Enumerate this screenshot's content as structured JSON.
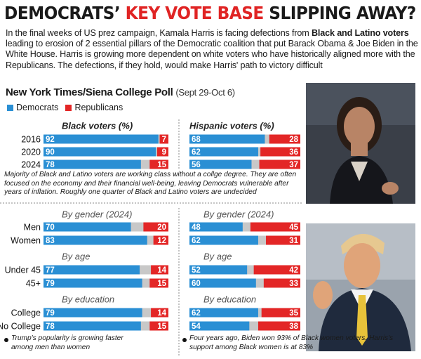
{
  "header": {
    "title_parts": [
      "DEMOCRATS’ ",
      "KEY VOTE BASE",
      " SLIPPING AWAY?"
    ]
  },
  "intro": [
    "In the final weeks of US prez campaign, Kamala Harris is facing defections from ",
    "Black and Latino voters",
    " leading to erosion of 2 essential pillars of the Democratic coalition that put Barack Obama & Joe Biden in the White House. Harris is growing more dependent on white voters who have historically aligned more with the Republicans. The defections, if they hold, would make Harris' path to victory difficult"
  ],
  "poll": {
    "title": "New York Times/Siena College Poll",
    "dates": "(Sept 29-Oct 6)",
    "legend": [
      {
        "name": "Democrats",
        "color": "#2a8fd4"
      },
      {
        "name": "Republicans",
        "color": "#e32626"
      }
    ]
  },
  "chart_data": [
    {
      "type": "bar",
      "stacked": true,
      "title": "Black voters (%)",
      "categories": [
        "2016",
        "2020",
        "2024"
      ],
      "series": [
        {
          "values": [
            92,
            90,
            78
          ]
        },
        {
          "values": [
            7,
            9,
            15
          ]
        }
      ],
      "xlim": [
        0,
        100
      ]
    },
    {
      "type": "bar",
      "stacked": true,
      "title": "Hispanic voters (%)",
      "series": [
        {
          "values": [
            68,
            62,
            56
          ]
        },
        {
          "values": [
            28,
            36,
            37
          ]
        }
      ],
      "xlim": [
        0,
        100
      ]
    },
    {
      "type": "bar",
      "stacked": true,
      "title": "By gender (2024)",
      "categories": [
        "Men",
        "Women"
      ],
      "series": [
        {
          "values": [
            70,
            83
          ]
        },
        {
          "values": [
            20,
            12
          ]
        }
      ],
      "xlim": [
        0,
        100
      ]
    },
    {
      "type": "bar",
      "stacked": true,
      "title": "By gender (2024)",
      "series": [
        {
          "values": [
            48,
            62
          ]
        },
        {
          "values": [
            45,
            31
          ]
        }
      ],
      "xlim": [
        0,
        100
      ]
    },
    {
      "type": "bar",
      "stacked": true,
      "title": "By age",
      "categories": [
        "Under 45",
        "45+"
      ],
      "series": [
        {
          "values": [
            77,
            79
          ]
        },
        {
          "values": [
            14,
            15
          ]
        }
      ],
      "xlim": [
        0,
        100
      ]
    },
    {
      "type": "bar",
      "stacked": true,
      "title": "By age",
      "series": [
        {
          "values": [
            52,
            60
          ]
        },
        {
          "values": [
            42,
            33
          ]
        }
      ],
      "xlim": [
        0,
        100
      ]
    },
    {
      "type": "bar",
      "stacked": true,
      "title": "By education",
      "categories": [
        "College",
        "No College"
      ],
      "series": [
        {
          "values": [
            79,
            78
          ]
        },
        {
          "values": [
            14,
            15
          ]
        }
      ],
      "xlim": [
        0,
        100
      ]
    },
    {
      "type": "bar",
      "stacked": true,
      "title": "By education",
      "series": [
        {
          "values": [
            62,
            54
          ]
        },
        {
          "values": [
            35,
            38
          ]
        }
      ],
      "xlim": [
        0,
        100
      ]
    }
  ],
  "note": "Majority of Black and Latino voters are working class without a collge degree. They are often focused on the economy and their financial well-being, leaving Democrats vulnerable after years of inflation. Roughly one quarter of Black and Latino voters are undecided",
  "footnotes": [
    "Trump's popularity is growing faster among men than women",
    "Four years ago, Biden won 93% of Black women voters. Harris's support among Black women is at 83%"
  ]
}
